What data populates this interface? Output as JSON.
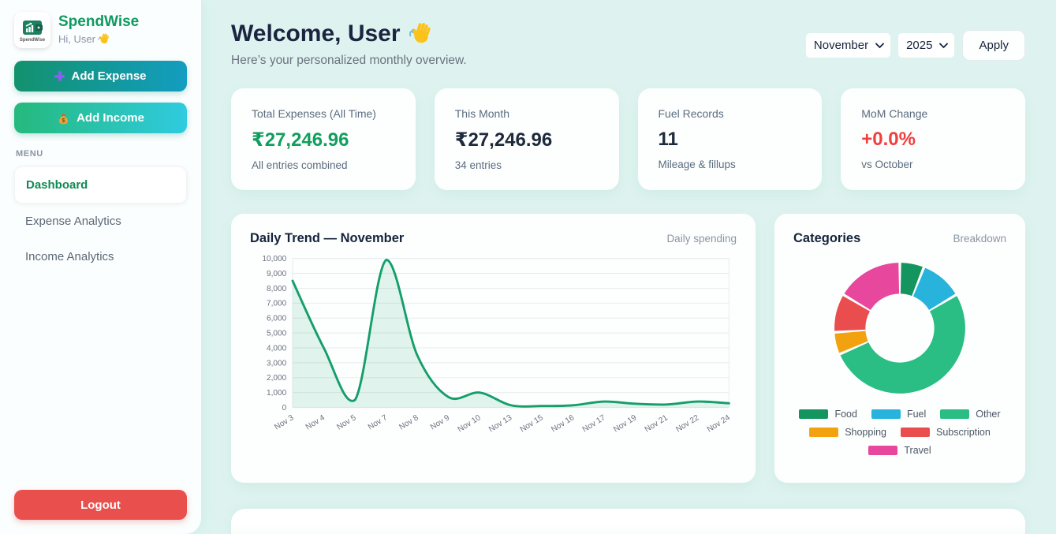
{
  "app": {
    "name": "SpendWise",
    "greeting": "Hi, User",
    "logo_icon": "wallet-chart-icon",
    "wave_icon": "waving-hand",
    "brand_color": "#0f9960"
  },
  "sidebar": {
    "add_expense_label": "Add Expense",
    "add_income_label": "Add Income",
    "menu_label": "MENU",
    "items": [
      {
        "label": "Dashboard",
        "active": true
      },
      {
        "label": "Expense Analytics",
        "active": false
      },
      {
        "label": "Income Analytics",
        "active": false
      }
    ],
    "logout_label": "Logout",
    "logout_color": "#e9504d"
  },
  "header": {
    "title": "Welcome, User",
    "subtitle": "Here’s your personalized monthly overview.",
    "month_selected": "November",
    "year_selected": "2025",
    "apply_label": "Apply"
  },
  "stats": [
    {
      "label": "Total Expenses (All Time)",
      "value": "₹27,246.96",
      "sub": "All entries combined",
      "value_color": "#119e5e"
    },
    {
      "label": "This Month",
      "value": "₹27,246.96",
      "sub": "34 entries",
      "value_color": "#1e293b"
    },
    {
      "label": "Fuel Records",
      "value": "11",
      "sub": "Mileage & fillups",
      "value_color": "#1e293b"
    },
    {
      "label": "MoM Change",
      "value": "+0.0%",
      "sub": "vs October",
      "value_color": "#ef4040"
    }
  ],
  "chart_data": [
    {
      "type": "area",
      "title": "Daily Trend — November",
      "subtitle": "Daily spending",
      "xlabel": "",
      "ylabel": "",
      "x": [
        "Nov 3",
        "Nov 4",
        "Nov 5",
        "Nov 7",
        "Nov 8",
        "Nov 9",
        "Nov 10",
        "Nov 13",
        "Nov 15",
        "Nov 16",
        "Nov 17",
        "Nov 19",
        "Nov 21",
        "Nov 22",
        "Nov 24"
      ],
      "values": [
        8500,
        4000,
        500,
        9900,
        3500,
        700,
        1000,
        150,
        100,
        150,
        400,
        250,
        200,
        400,
        280
      ],
      "ylim": [
        0,
        10000
      ],
      "ytick_step": 1000,
      "grid": true,
      "legend_position": "none",
      "line_color": "#149e6a",
      "fill_color": "rgba(20,158,106,0.12)"
    },
    {
      "type": "pie",
      "donut": true,
      "title": "Categories",
      "subtitle": "Breakdown",
      "legend_position": "bottom",
      "segments": [
        {
          "label": "Food",
          "pct": 6,
          "color": "#14945f"
        },
        {
          "label": "Fuel",
          "pct": 10.5,
          "color": "#27b3dc"
        },
        {
          "label": "Other",
          "pct": 52,
          "color": "#2abd84"
        },
        {
          "label": "Shopping",
          "pct": 5.5,
          "color": "#f2a20f"
        },
        {
          "label": "Subscription",
          "pct": 9.5,
          "color": "#ea4d4d"
        },
        {
          "label": "Travel",
          "pct": 16.5,
          "color": "#e8479e"
        }
      ]
    }
  ]
}
